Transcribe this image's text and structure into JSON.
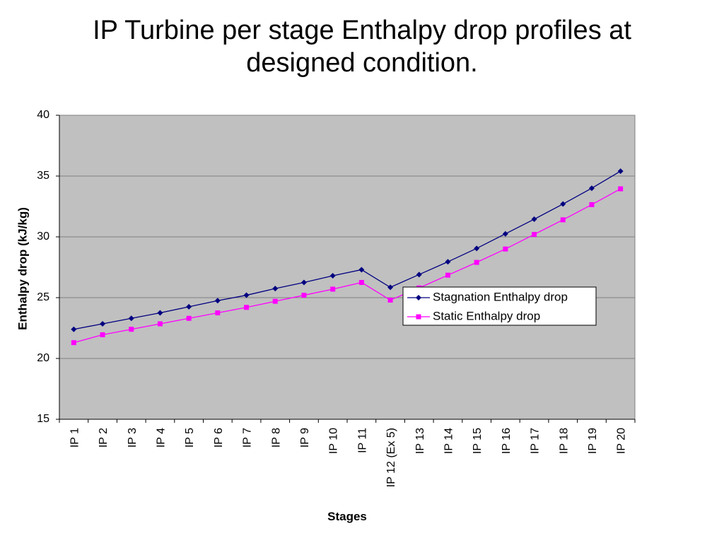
{
  "chart_data": {
    "type": "line",
    "title": "IP Turbine per stage Enthalpy drop profiles at designed condition.",
    "xlabel": "Stages",
    "ylabel": "Enthalpy drop (kJ/kg)",
    "ylim": [
      15,
      40
    ],
    "yticks": [
      15,
      20,
      25,
      30,
      35,
      40
    ],
    "grid": true,
    "legend_position": "right-middle",
    "categories": [
      "IP 1",
      "IP 2",
      "IP 3",
      "IP 4",
      "IP 5",
      "IP 6",
      "IP 7",
      "IP 8",
      "IP 9",
      "IP 10",
      "IP 11",
      "IP 12 (Ex 5)",
      "IP 13",
      "IP 14",
      "IP 15",
      "IP 16",
      "IP 17",
      "IP 18",
      "IP 19",
      "IP 20"
    ],
    "series": [
      {
        "name": "Stagnation Enthalpy drop",
        "color": "#000080",
        "marker": "diamond",
        "values": [
          22.4,
          22.85,
          23.3,
          23.75,
          24.25,
          24.75,
          25.2,
          25.75,
          26.25,
          26.8,
          27.3,
          25.85,
          26.9,
          27.95,
          29.05,
          30.25,
          31.45,
          32.7,
          34.0,
          35.4
        ]
      },
      {
        "name": "Static Enthalpy drop",
        "color": "#FF00FF",
        "marker": "square",
        "values": [
          21.3,
          21.95,
          22.4,
          22.85,
          23.3,
          23.75,
          24.2,
          24.7,
          25.2,
          25.7,
          26.25,
          24.8,
          25.8,
          26.85,
          27.9,
          29.0,
          30.2,
          31.4,
          32.65,
          33.95
        ]
      }
    ]
  },
  "colors": {
    "plot_background": "#C0C0C0",
    "gridline": "#808080",
    "axis": "#808080"
  }
}
